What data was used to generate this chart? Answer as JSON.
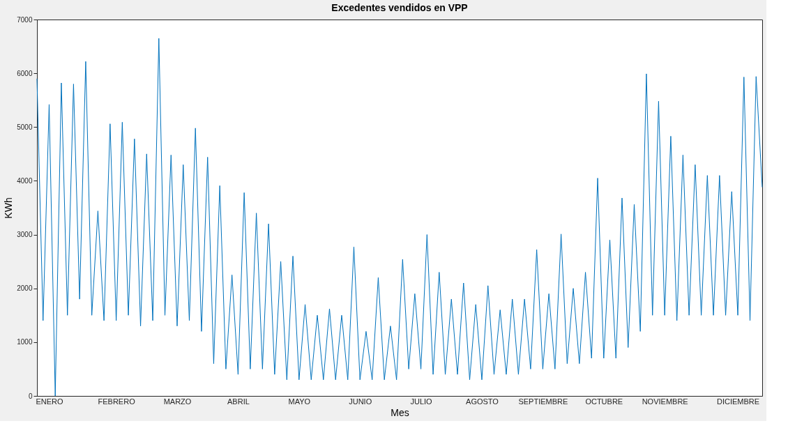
{
  "chart_data": {
    "type": "line",
    "title": "Excedentes vendidos en VPP",
    "xlabel": "Mes",
    "ylabel": "KWh",
    "ylim": [
      0,
      7000
    ],
    "yticks": [
      0,
      1000,
      2000,
      3000,
      4000,
      5000,
      6000,
      7000
    ],
    "categories": [
      null,
      null,
      "ENERO",
      null,
      null,
      null,
      null,
      null,
      null,
      null,
      null,
      null,
      null,
      "FEBRERO",
      null,
      null,
      null,
      null,
      null,
      null,
      null,
      null,
      null,
      "MARZO",
      null,
      null,
      null,
      null,
      null,
      null,
      null,
      null,
      null,
      "ABRIL",
      null,
      null,
      null,
      null,
      null,
      null,
      null,
      null,
      null,
      "MAYO",
      null,
      null,
      null,
      null,
      null,
      null,
      null,
      null,
      null,
      "JUNIO",
      null,
      null,
      null,
      null,
      null,
      null,
      null,
      null,
      null,
      "JULIO",
      null,
      null,
      null,
      null,
      null,
      null,
      null,
      null,
      null,
      "AGOSTO",
      null,
      null,
      null,
      null,
      null,
      null,
      null,
      null,
      null,
      "SEPTIEMBRE",
      null,
      null,
      null,
      null,
      null,
      null,
      null,
      null,
      null,
      "OCTUBRE",
      null,
      null,
      null,
      null,
      null,
      null,
      null,
      null,
      null,
      "NOVIEMBRE",
      null,
      null,
      null,
      null,
      null,
      null,
      null,
      null,
      null,
      null,
      null,
      "DICIEMBRE",
      null,
      null,
      null,
      null
    ],
    "grid": false,
    "series": [
      {
        "color": "#0072bd",
        "values": [
          5900,
          1400,
          5420,
          0,
          5820,
          1500,
          5800,
          1800,
          6220,
          1500,
          3440,
          1400,
          5060,
          1400,
          5090,
          1500,
          4780,
          1300,
          4500,
          1400,
          6650,
          1500,
          4480,
          1300,
          4300,
          1400,
          4980,
          1200,
          4440,
          600,
          3910,
          500,
          2250,
          400,
          3780,
          500,
          3400,
          500,
          3200,
          400,
          2500,
          300,
          2600,
          300,
          1700,
          300,
          1500,
          300,
          1620,
          300,
          1500,
          300,
          2770,
          300,
          1200,
          300,
          2200,
          300,
          1300,
          300,
          2540,
          500,
          1900,
          500,
          3000,
          400,
          2300,
          400,
          1800,
          400,
          2100,
          300,
          1700,
          300,
          2050,
          400,
          1600,
          400,
          1800,
          400,
          1800,
          500,
          2720,
          500,
          1900,
          500,
          3010,
          600,
          2000,
          600,
          2300,
          700,
          4050,
          700,
          2900,
          700,
          3680,
          900,
          3560,
          1200,
          5990,
          1500,
          5480,
          1500,
          4830,
          1400,
          4480,
          1500,
          4300,
          1500,
          4100,
          1500,
          4100,
          1500,
          3800,
          1500,
          5930,
          1400,
          5940,
          3880
        ]
      }
    ]
  }
}
